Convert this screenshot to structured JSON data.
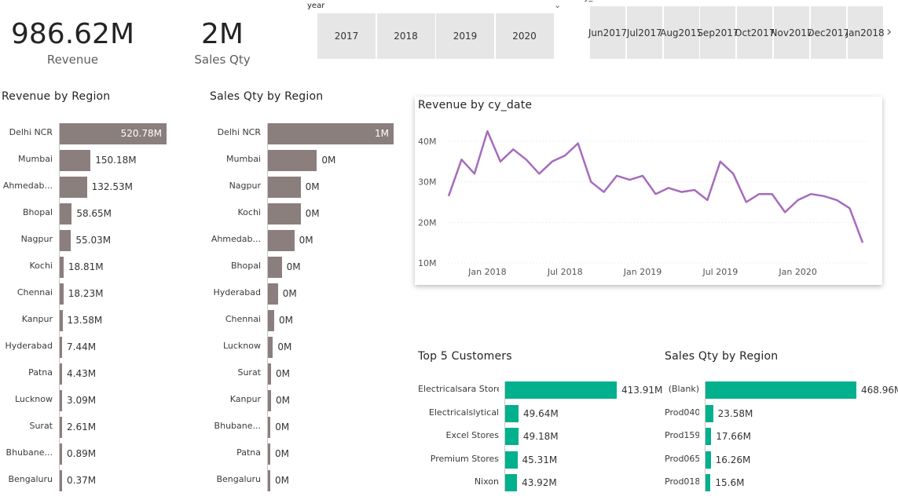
{
  "kpis": [
    {
      "value": "986.62M",
      "label": "Revenue"
    },
    {
      "value": "2M",
      "label": "Sales Qty"
    }
  ],
  "year_slicer": {
    "title": "year",
    "options": [
      "2017",
      "2018",
      "2019",
      "2020"
    ]
  },
  "date_slicer": {
    "title": "cy_date",
    "options": [
      [
        "Jun",
        "2017"
      ],
      [
        "Jul",
        "2017"
      ],
      [
        "Aug",
        "2017"
      ],
      [
        "Sep",
        "2017"
      ],
      [
        "Oct",
        "2017"
      ],
      [
        "Nov",
        "2017"
      ],
      [
        "Dec",
        "2017"
      ],
      [
        "Jan",
        "2018"
      ]
    ]
  },
  "colors": {
    "gray_bar": "#8a7f7d",
    "teal_bar": "#01b08c",
    "line": "#a66bbd",
    "slicer_bg": "#e6e6e6"
  },
  "icons": {
    "next": "chevron-right-icon",
    "dropdown": "chevron-down-icon"
  },
  "chart_data": [
    {
      "type": "bar",
      "title": "Revenue by Region",
      "orientation": "horizontal",
      "categories": [
        "Delhi NCR",
        "Mumbai",
        "Ahmedab...",
        "Bhopal",
        "Nagpur",
        "Kochi",
        "Chennai",
        "Kanpur",
        "Hyderabad",
        "Patna",
        "Lucknow",
        "Surat",
        "Bhubane...",
        "Bengaluru"
      ],
      "values": [
        520.78,
        150.18,
        132.53,
        58.65,
        55.03,
        18.81,
        18.23,
        13.58,
        7.44,
        4.43,
        3.09,
        2.61,
        0.89,
        0.37
      ],
      "labels": [
        "520.78M",
        "150.18M",
        "132.53M",
        "58.65M",
        "55.03M",
        "18.81M",
        "18.23M",
        "13.58M",
        "7.44M",
        "4.43M",
        "3.09M",
        "2.61M",
        "0.89M",
        "0.37M"
      ],
      "unit": "M"
    },
    {
      "type": "bar",
      "title": "Sales Qty by Region",
      "orientation": "horizontal",
      "categories": [
        "Delhi NCR",
        "Mumbai",
        "Nagpur",
        "Kochi",
        "Ahmedab...",
        "Bhopal",
        "Hyderabad",
        "Chennai",
        "Lucknow",
        "Surat",
        "Kanpur",
        "Bhubane...",
        "Patna",
        "Bengaluru"
      ],
      "values": [
        1.0,
        0.39,
        0.26,
        0.26,
        0.21,
        0.11,
        0.08,
        0.05,
        0.04,
        0.025,
        0.025,
        0.02,
        0.01,
        0.005
      ],
      "labels": [
        "1M",
        "0M",
        "0M",
        "0M",
        "0M",
        "0M",
        "0M",
        "0M",
        "0M",
        "0M",
        "0M",
        "0M",
        "0M",
        "0M"
      ],
      "unit": "M"
    },
    {
      "type": "line",
      "title": "Revenue by cy_date",
      "x": [
        "2017-10",
        "2017-11",
        "2017-12",
        "2018-01",
        "2018-02",
        "2018-03",
        "2018-04",
        "2018-05",
        "2018-06",
        "2018-07",
        "2018-08",
        "2018-09",
        "2018-10",
        "2018-11",
        "2018-12",
        "2019-01",
        "2019-02",
        "2019-03",
        "2019-04",
        "2019-05",
        "2019-06",
        "2019-07",
        "2019-08",
        "2019-09",
        "2019-10",
        "2019-11",
        "2019-12",
        "2020-01",
        "2020-02",
        "2020-03",
        "2020-04",
        "2020-05",
        "2020-06"
      ],
      "values": [
        26.5,
        35.5,
        32,
        42.5,
        35,
        38,
        35.5,
        32,
        35,
        36.5,
        39.5,
        30,
        27.5,
        31.5,
        30.5,
        31.5,
        27,
        28.5,
        27.5,
        28,
        25.5,
        35,
        32,
        25,
        27,
        27,
        22.5,
        25.5,
        27,
        26.5,
        25.5,
        23.5,
        15
      ],
      "y_ticks": [
        "10M",
        "20M",
        "30M",
        "40M"
      ],
      "y_tick_values": [
        10,
        20,
        30,
        40
      ],
      "x_ticks": [
        "Jan 2018",
        "Jul 2018",
        "Jan 2019",
        "Jul 2019",
        "Jan 2020"
      ],
      "x_tick_values": [
        "2018-01",
        "2018-07",
        "2019-01",
        "2019-07",
        "2020-01"
      ],
      "ylim": [
        10,
        45
      ],
      "grid": true
    },
    {
      "type": "bar",
      "title": "Top 5 Customers",
      "orientation": "horizontal",
      "categories": [
        "Electricalsara Stores",
        "Electricalslytical",
        "Excel Stores",
        "Premium Stores",
        "Nixon"
      ],
      "values": [
        413.91,
        49.64,
        49.18,
        45.31,
        43.92
      ],
      "labels": [
        "413.91M",
        "49.64M",
        "49.18M",
        "45.31M",
        "43.92M"
      ],
      "unit": "M"
    },
    {
      "type": "bar",
      "title": "Sales Qty by Region",
      "orientation": "horizontal",
      "categories": [
        "(Blank)",
        "Prod040",
        "Prod159",
        "Prod065",
        "Prod018"
      ],
      "values": [
        468.96,
        23.58,
        17.66,
        16.26,
        15.6
      ],
      "labels": [
        "468.96M",
        "23.58M",
        "17.66M",
        "16.26M",
        "15.6M"
      ],
      "unit": "M"
    }
  ]
}
